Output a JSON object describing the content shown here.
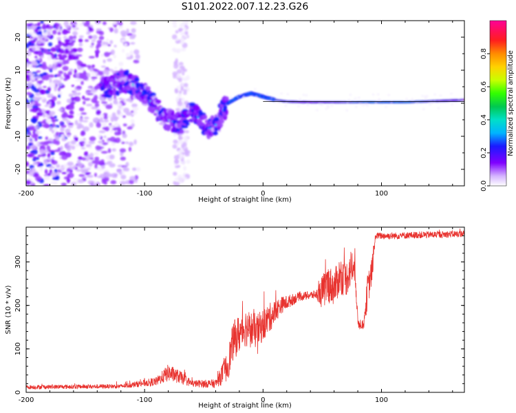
{
  "figure_title": "S101.2022.007.12.23.G26",
  "chart_data": [
    {
      "type": "heatmap",
      "title": "S101.2022.007.12.23.G26",
      "xlabel": "Height of straight line (km)",
      "ylabel": "Frequency (Hz)",
      "xlim": [
        -200,
        170
      ],
      "ylim": [
        -25,
        25
      ],
      "x_ticks": [
        -200,
        -100,
        0,
        100
      ],
      "y_ticks": [
        -20,
        -10,
        0,
        10,
        20
      ],
      "colorbar": {
        "label": "Normalized spectral amplitude",
        "range": [
          0,
          1
        ],
        "ticks": [
          "0.0",
          "0.2",
          "0.4",
          "0.6",
          "0.8"
        ],
        "colormap": "gist_ncar"
      },
      "ridge": {
        "description_points_x": [
          -130,
          -115,
          -100,
          -90,
          -80,
          -70,
          -60,
          -50,
          -45,
          -38,
          -35,
          -30,
          -20,
          -10,
          0,
          10,
          20,
          40,
          60,
          80,
          100,
          120,
          140,
          170
        ],
        "description_points_freq": [
          5,
          7,
          3,
          -2,
          -5,
          -6,
          -2,
          -6,
          -8,
          -6,
          -3,
          0,
          2,
          3,
          2,
          1,
          0.5,
          0.3,
          0.3,
          0.3,
          0.3,
          0.3,
          0.6,
          1
        ]
      }
    },
    {
      "type": "line",
      "xlabel": "Height of straight line (km)",
      "ylabel": "SNR (10 * v/v)",
      "xlim": [
        -200,
        170
      ],
      "ylim": [
        0,
        380
      ],
      "x_ticks": [
        -200,
        -100,
        0,
        100
      ],
      "y_ticks": [
        0,
        100,
        200,
        300
      ],
      "color": "#e8332f",
      "level_x": [
        -200,
        -120,
        -90,
        -80,
        -70,
        -60,
        -40,
        -30,
        -25,
        -15,
        -5,
        5,
        15,
        30,
        45,
        50,
        55,
        60,
        65,
        70,
        75,
        78,
        80,
        85,
        88,
        92,
        95,
        110,
        130,
        150,
        170
      ],
      "level_y": [
        12,
        14,
        25,
        45,
        35,
        20,
        20,
        60,
        120,
        150,
        140,
        170,
        200,
        220,
        225,
        230,
        250,
        240,
        270,
        260,
        290,
        270,
        160,
        155,
        230,
        280,
        360,
        360,
        362,
        363,
        365
      ],
      "noise": [
        5,
        5,
        10,
        20,
        15,
        8,
        10,
        35,
        45,
        45,
        40,
        35,
        20,
        10,
        10,
        40,
        45,
        40,
        45,
        40,
        45,
        30,
        15,
        10,
        40,
        30,
        8,
        8,
        8,
        8,
        8
      ]
    }
  ]
}
